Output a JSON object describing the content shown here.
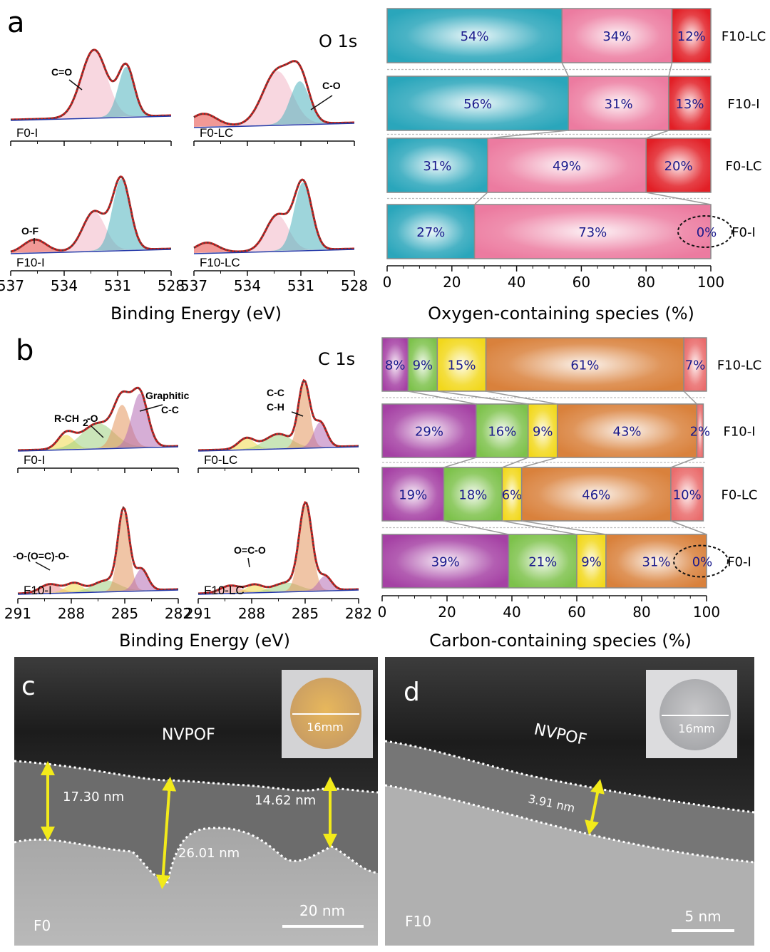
{
  "panels": {
    "a": {
      "letter": "a",
      "core_level": "O 1s",
      "xps_xlabel": "Binding Energy (eV)",
      "bar_xlabel": "Oxygen-containing species (%)"
    },
    "b": {
      "letter": "b",
      "core_level": "C 1s",
      "xps_xlabel": "Binding Energy (eV)",
      "bar_xlabel": "Carbon-containing species (%)"
    },
    "c": {
      "letter": "c",
      "layer": "NVPOF",
      "sample": "F0",
      "scale_bar": "20 nm",
      "inset": "16mm",
      "thicknesses": [
        "17.30 nm",
        "26.01 nm",
        "14.62 nm"
      ]
    },
    "d": {
      "letter": "d",
      "layer": "NVPOF",
      "sample": "F10",
      "scale_bar": "5 nm",
      "inset": "16mm",
      "thicknesses": [
        "3.91 nm"
      ]
    }
  },
  "xps_spectra": {
    "o1s": {
      "ticks": [
        "537",
        "534",
        "531",
        "528"
      ],
      "samples": [
        "F0-I",
        "F0-LC",
        "F10-I",
        "F10-LC"
      ],
      "peak_labels": [
        "C=O",
        "C-O",
        "O-F"
      ]
    },
    "c1s": {
      "ticks": [
        "291",
        "288",
        "285",
        "282"
      ],
      "samples": [
        "F0-I",
        "F0-LC",
        "F10-I",
        "F10-LC"
      ],
      "peak_labels": [
        "Graphitic",
        "C-C",
        "R-CH",
        "2",
        "-O",
        "C-C",
        "C-H",
        "-O-(O=C)-O-",
        "O=C-O"
      ]
    }
  },
  "chart_data": [
    {
      "type": "bar",
      "orientation": "horizontal-stacked",
      "title": "O 1s",
      "xlabel": "Oxygen-containing species (%)",
      "xlim": [
        0,
        100
      ],
      "xticks": [
        "0",
        "20",
        "40",
        "60",
        "80",
        "100"
      ],
      "categories": [
        "F10-LC",
        "F10-I",
        "F0-LC",
        "F0-I"
      ],
      "series": [
        {
          "name": "C-O",
          "color": "#2aa6bb",
          "values": [
            54,
            56,
            31,
            27
          ],
          "labels": [
            "54%",
            "56%",
            "31%",
            "27%"
          ]
        },
        {
          "name": "C=O",
          "color": "#ec7ba0",
          "values": [
            34,
            31,
            49,
            73
          ],
          "labels": [
            "34%",
            "31%",
            "49%",
            "73%"
          ]
        },
        {
          "name": "O-F",
          "color": "#e21f26",
          "values": [
            12,
            13,
            20,
            0
          ],
          "labels": [
            "12%",
            "13%",
            "20%",
            "0%"
          ]
        }
      ]
    },
    {
      "type": "bar",
      "orientation": "horizontal-stacked",
      "title": "C 1s",
      "xlabel": "Carbon-containing species (%)",
      "xlim": [
        0,
        100
      ],
      "xticks": [
        "0",
        "20",
        "40",
        "60",
        "80",
        "100"
      ],
      "categories": [
        "F10-LC",
        "F10-I",
        "F0-LC",
        "F0-I"
      ],
      "series": [
        {
          "name": "Graphitic C-C",
          "color": "#a541a4",
          "values": [
            8,
            29,
            19,
            39
          ],
          "labels": [
            "8%",
            "29%",
            "19%",
            "39%"
          ]
        },
        {
          "name": "R-CH2-O",
          "color": "#7dc24b",
          "values": [
            9,
            16,
            18,
            21
          ],
          "labels": [
            "9%",
            "16%",
            "18%",
            "21%"
          ]
        },
        {
          "name": "O=C-O",
          "color": "#f2d81c",
          "values": [
            15,
            9,
            6,
            9
          ],
          "labels": [
            "15%",
            "9%",
            "6%",
            "9%"
          ]
        },
        {
          "name": "C-C/C-H",
          "color": "#d9813c",
          "values": [
            61,
            43,
            46,
            31
          ],
          "labels": [
            "61%",
            "43%",
            "46%",
            "31%"
          ]
        },
        {
          "name": "-O-(O=C)-O-",
          "color": "#ea6b6b",
          "values": [
            7,
            2,
            10,
            0
          ],
          "labels": [
            "7%",
            "2%",
            "10%",
            "0%"
          ]
        }
      ]
    }
  ]
}
